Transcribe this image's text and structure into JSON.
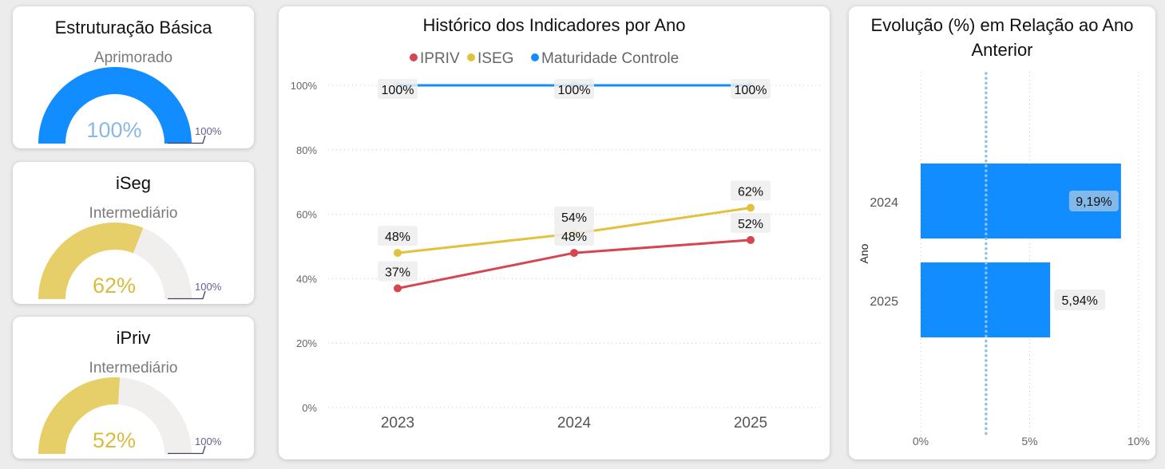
{
  "gauges": [
    {
      "title": "Estruturação Básica",
      "subtitle": "Aprimorado",
      "value": 1.0,
      "value_label": "100%",
      "max_label": "100%",
      "color": "#118dff",
      "value_color": "#8ab8e6"
    },
    {
      "title": "iSeg",
      "subtitle": "Intermediário",
      "value": 0.62,
      "value_label": "62%",
      "max_label": "100%",
      "color": "#e6cf68",
      "value_color": "#d9bc3e"
    },
    {
      "title": "iPriv",
      "subtitle": "Intermediário",
      "value": 0.52,
      "value_label": "52%",
      "max_label": "100%",
      "color": "#e6cf68",
      "value_color": "#d9bc3e"
    }
  ],
  "chart_data": [
    {
      "type": "line",
      "title": "Histórico dos Indicadores por Ano",
      "categories": [
        "2023",
        "2024",
        "2025"
      ],
      "xlabel": "",
      "ylabel": "",
      "ylim": [
        0,
        100
      ],
      "yticks": [
        "0%",
        "20%",
        "40%",
        "60%",
        "80%",
        "100%"
      ],
      "ytick_values": [
        0,
        20,
        40,
        60,
        80,
        100
      ],
      "grid": true,
      "legend": "top-center",
      "series": [
        {
          "name": "IPRIV",
          "color": "#d64550",
          "values": [
            37,
            48,
            52
          ],
          "labels": [
            "37%",
            "48%",
            "52%"
          ]
        },
        {
          "name": "ISEG",
          "color": "#e2c23d",
          "values": [
            48,
            54,
            62
          ],
          "labels": [
            "48%",
            "54%",
            "62%"
          ]
        },
        {
          "name": "Maturidade Controle",
          "color": "#118dff",
          "values": [
            100,
            100,
            100
          ],
          "labels": [
            "100%",
            "100%",
            "100%"
          ]
        }
      ]
    },
    {
      "type": "bar",
      "orientation": "horizontal",
      "title": "Evolução (%) em Relação ao Ano Anterior",
      "title_lines": [
        "Evolução (%) em Relação ao Ano",
        "Anterior"
      ],
      "categories": [
        "2024",
        "2025"
      ],
      "values": [
        9.19,
        5.94
      ],
      "value_labels": [
        "9,19%",
        "5,94%"
      ],
      "xlabel": "",
      "ylabel": "Ano",
      "xlim": [
        0,
        10
      ],
      "xticks": [
        "0%",
        "5%",
        "10%"
      ],
      "xtick_values": [
        0,
        5,
        10
      ],
      "reference_line": 3.0,
      "grid": true,
      "color": "#118dff"
    }
  ]
}
